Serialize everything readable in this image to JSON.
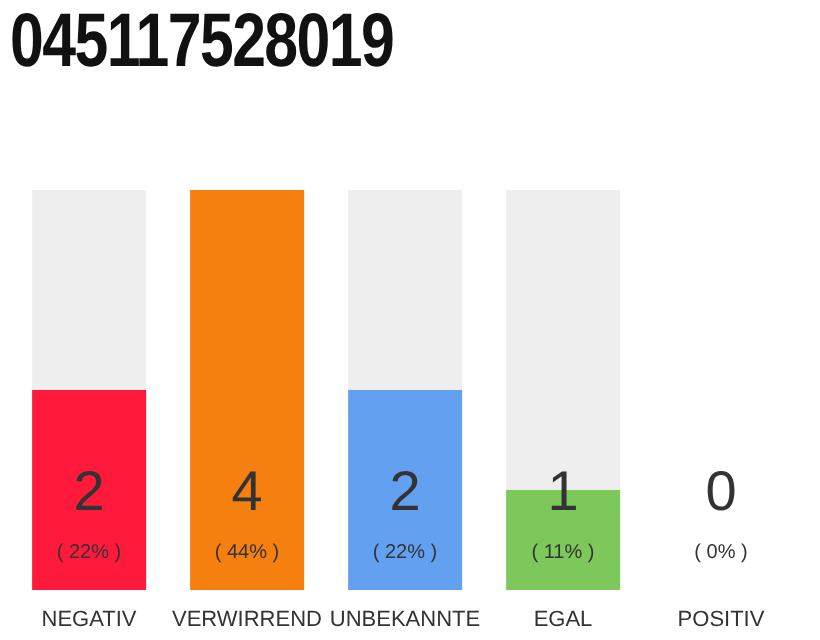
{
  "chart_data": {
    "type": "bar",
    "title": "045117528019",
    "categories": [
      "NEGATIV",
      "VERWIRREND",
      "UNBEKANNTE",
      "EGAL",
      "POSITIV"
    ],
    "values": [
      2,
      4,
      2,
      1,
      0
    ],
    "colors": [
      "#ff1a3c",
      "#f57f0f",
      "#64a0f0",
      "#7dc85a",
      "#dddddd"
    ],
    "data_labels": true,
    "annotations": [
      "( 22% )",
      "( 44% )",
      "( 22% )",
      "( 11% )",
      "( 0% )"
    ]
  }
}
